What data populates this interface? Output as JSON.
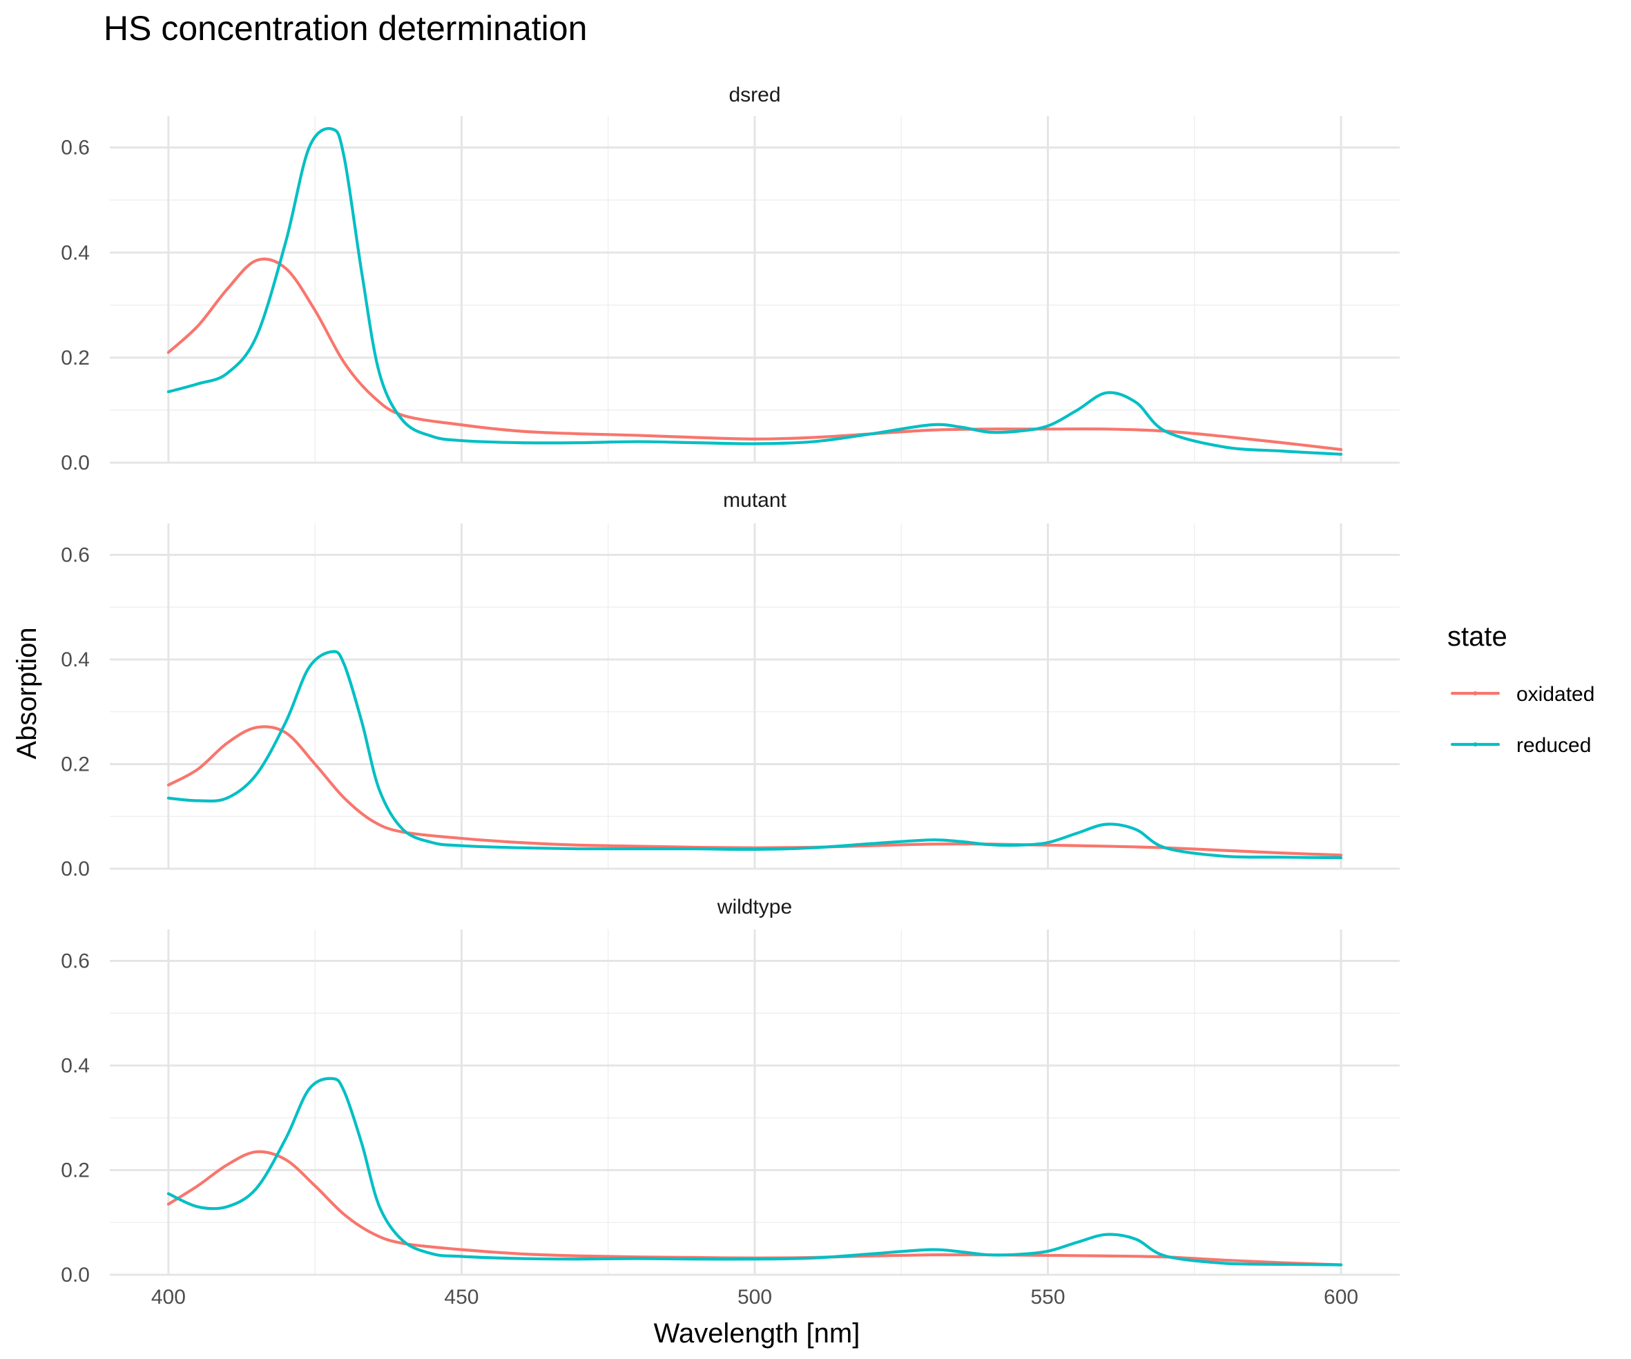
{
  "chart_data": {
    "type": "line",
    "title": "HS concentration determination",
    "xlabel": "Wavelength [nm]",
    "ylabel": "Absorption",
    "xlim": [
      390,
      610
    ],
    "ylim": [
      0,
      0.66
    ],
    "x_ticks": [
      400,
      450,
      500,
      550,
      600
    ],
    "y_ticks": [
      0.0,
      0.2,
      0.4,
      0.6
    ],
    "x_tick_labels": [
      "400",
      "450",
      "500",
      "550",
      "600"
    ],
    "y_tick_labels": [
      "0.0",
      "0.2",
      "0.4",
      "0.6"
    ],
    "grid": true,
    "legend": {
      "title": "state",
      "position": "right",
      "entries": [
        {
          "label": "oxidated",
          "color": "#F8766D"
        },
        {
          "label": "reduced",
          "color": "#00BFC4"
        }
      ]
    },
    "panels": [
      {
        "name": "dsred",
        "series": [
          {
            "name": "oxidated",
            "color": "#F8766D",
            "x": [
              400,
              405,
              410,
              415,
              420,
              425,
              430,
              435,
              440,
              450,
              460,
              470,
              480,
              490,
              500,
              510,
              520,
              530,
              540,
              550,
              560,
              570,
              580,
              590,
              600
            ],
            "y": [
              0.21,
              0.26,
              0.33,
              0.385,
              0.37,
              0.29,
              0.19,
              0.125,
              0.09,
              0.072,
              0.06,
              0.055,
              0.052,
              0.048,
              0.045,
              0.048,
              0.055,
              0.062,
              0.064,
              0.064,
              0.064,
              0.06,
              0.05,
              0.038,
              0.025
            ]
          },
          {
            "name": "reduced",
            "color": "#00BFC4",
            "x": [
              400,
              405,
              410,
              415,
              420,
              424,
              428,
              430,
              433,
              436,
              440,
              445,
              450,
              460,
              470,
              480,
              490,
              500,
              510,
              520,
              530,
              535,
              540,
              545,
              550,
              555,
              560,
              565,
              570,
              580,
              590,
              600
            ],
            "y": [
              0.135,
              0.15,
              0.17,
              0.24,
              0.42,
              0.6,
              0.635,
              0.58,
              0.36,
              0.17,
              0.08,
              0.05,
              0.042,
              0.038,
              0.038,
              0.04,
              0.038,
              0.036,
              0.04,
              0.055,
              0.072,
              0.068,
              0.058,
              0.06,
              0.07,
              0.1,
              0.133,
              0.115,
              0.06,
              0.03,
              0.022,
              0.016
            ]
          }
        ]
      },
      {
        "name": "mutant",
        "series": [
          {
            "name": "oxidated",
            "color": "#F8766D",
            "x": [
              400,
              405,
              410,
              415,
              420,
              425,
              430,
              435,
              440,
              450,
              460,
              470,
              480,
              490,
              500,
              510,
              520,
              530,
              540,
              550,
              560,
              570,
              580,
              590,
              600
            ],
            "y": [
              0.16,
              0.19,
              0.24,
              0.27,
              0.26,
              0.2,
              0.135,
              0.09,
              0.07,
              0.058,
              0.05,
              0.045,
              0.043,
              0.041,
              0.04,
              0.041,
              0.044,
              0.047,
              0.047,
              0.045,
              0.043,
              0.04,
              0.035,
              0.03,
              0.026
            ]
          },
          {
            "name": "reduced",
            "color": "#00BFC4",
            "x": [
              400,
              405,
              410,
              415,
              420,
              424,
              428,
              430,
              433,
              436,
              440,
              445,
              450,
              460,
              470,
              480,
              490,
              500,
              510,
              520,
              530,
              535,
              540,
              545,
              550,
              555,
              560,
              565,
              570,
              580,
              590,
              600
            ],
            "y": [
              0.135,
              0.13,
              0.135,
              0.18,
              0.28,
              0.385,
              0.415,
              0.39,
              0.28,
              0.15,
              0.075,
              0.05,
              0.044,
              0.04,
              0.038,
              0.038,
              0.038,
              0.037,
              0.04,
              0.048,
              0.055,
              0.052,
              0.046,
              0.045,
              0.05,
              0.068,
              0.085,
              0.075,
              0.04,
              0.024,
              0.022,
              0.021
            ]
          }
        ]
      },
      {
        "name": "wildtype",
        "series": [
          {
            "name": "oxidated",
            "color": "#F8766D",
            "x": [
              400,
              405,
              410,
              415,
              420,
              425,
              430,
              435,
              440,
              450,
              460,
              470,
              480,
              490,
              500,
              510,
              520,
              530,
              540,
              550,
              560,
              570,
              580,
              590,
              600
            ],
            "y": [
              0.135,
              0.17,
              0.21,
              0.235,
              0.22,
              0.17,
              0.115,
              0.078,
              0.06,
              0.048,
              0.04,
              0.036,
              0.034,
              0.033,
              0.032,
              0.033,
              0.036,
              0.038,
              0.038,
              0.037,
              0.036,
              0.034,
              0.028,
              0.023,
              0.019
            ]
          },
          {
            "name": "reduced",
            "color": "#00BFC4",
            "x": [
              400,
              405,
              410,
              415,
              420,
              424,
              428,
              430,
              433,
              436,
              440,
              445,
              450,
              460,
              470,
              480,
              490,
              500,
              510,
              520,
              530,
              535,
              540,
              545,
              550,
              555,
              560,
              565,
              570,
              580,
              590,
              600
            ],
            "y": [
              0.155,
              0.13,
              0.13,
              0.165,
              0.26,
              0.355,
              0.375,
              0.35,
              0.25,
              0.13,
              0.065,
              0.04,
              0.035,
              0.031,
              0.03,
              0.031,
              0.03,
              0.03,
              0.032,
              0.04,
              0.048,
              0.044,
              0.038,
              0.039,
              0.045,
              0.062,
              0.077,
              0.068,
              0.036,
              0.022,
              0.02,
              0.019
            ]
          }
        ]
      }
    ]
  }
}
